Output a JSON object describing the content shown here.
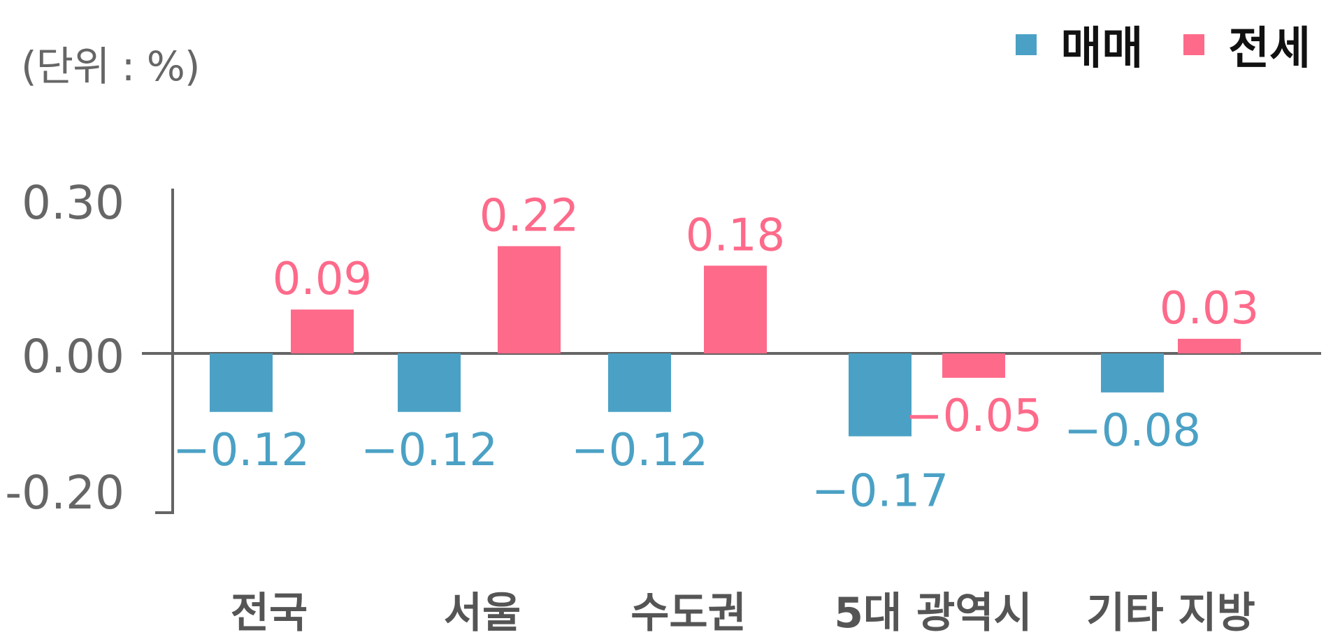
{
  "unit_label": "(단위 : %)",
  "colors": {
    "sale": "#4ba1c5",
    "jeonse": "#fe6a8a",
    "axis": "#646464",
    "tick_text": "#666666",
    "category_text": "#555555"
  },
  "chart_data": {
    "type": "bar",
    "categories": [
      "전국",
      "서울",
      "수도권",
      "5대 광역시",
      "기타 지방"
    ],
    "series": [
      {
        "name": "매매",
        "values": [
          -0.12,
          -0.12,
          -0.12,
          -0.17,
          -0.08
        ],
        "labels": [
          "−0.12",
          "−0.12",
          "−0.12",
          "−0.17",
          "−0.08"
        ]
      },
      {
        "name": "전세",
        "values": [
          0.09,
          0.22,
          0.18,
          -0.05,
          0.03
        ],
        "labels": [
          "0.09",
          "0.22",
          "0.18",
          "−0.05",
          "0.03"
        ]
      }
    ],
    "y_ticks": [
      0.3,
      0.0,
      -0.2
    ],
    "y_tick_labels": [
      "0.30",
      "0.00",
      "-0.20"
    ],
    "legend_position": "top-right",
    "grid": false
  }
}
